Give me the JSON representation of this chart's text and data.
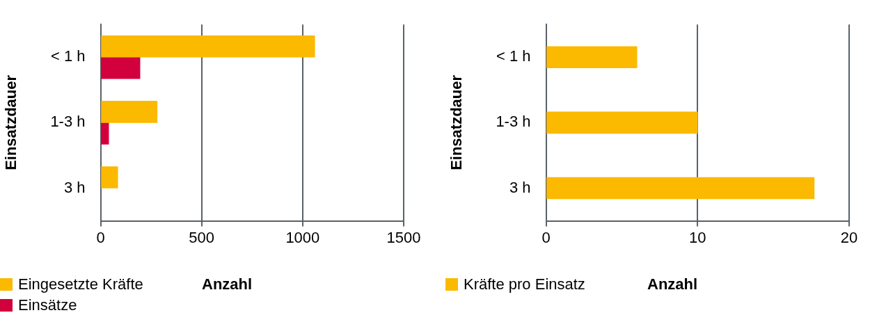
{
  "chart_data": [
    {
      "type": "bar",
      "orientation": "horizontal",
      "categories": [
        "< 1 h",
        "1-3 h",
        "3 h"
      ],
      "series": [
        {
          "name": "Eingesetzte Kräfte",
          "color": "#fbb900",
          "values": [
            1060,
            280,
            85
          ]
        },
        {
          "name": "Einsätze",
          "color": "#d2003c",
          "values": [
            195,
            40,
            null
          ]
        }
      ],
      "xlabel": "Anzahl",
      "ylabel": "Einsatzdauer",
      "xlim": [
        0,
        1500
      ],
      "xticks": [
        0,
        500,
        1000,
        1500
      ],
      "grid": "x",
      "legend": "bottom left"
    },
    {
      "type": "bar",
      "orientation": "horizontal",
      "categories": [
        "< 1 h",
        "1-3 h",
        "3 h"
      ],
      "series": [
        {
          "name": "Kräfte pro Einsatz",
          "color": "#fbb900",
          "values": [
            6,
            10,
            17.7
          ]
        }
      ],
      "xlabel": "Anzahl",
      "ylabel": "Einsatzdauer",
      "xlim": [
        0,
        20
      ],
      "xticks": [
        0,
        10,
        20
      ],
      "grid": "x",
      "legend": "bottom left"
    }
  ]
}
